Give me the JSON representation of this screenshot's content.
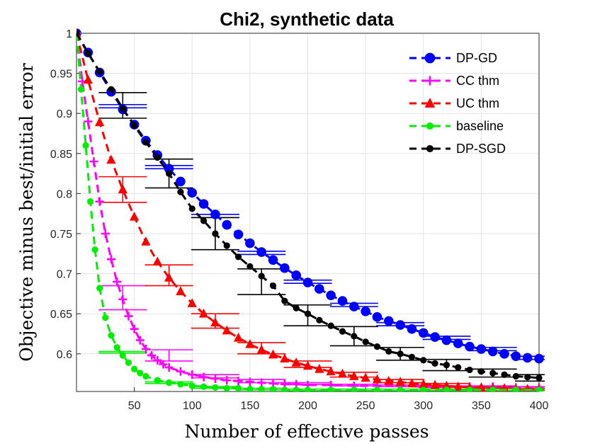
{
  "chart_data": {
    "type": "line",
    "title": "Chi2, synthetic data",
    "xlabel": "Number of effective passes",
    "ylabel": "Objective minus best/initial error",
    "xlim": [
      0,
      400
    ],
    "ylim": [
      0.553,
      1.0
    ],
    "xticks": [
      50,
      100,
      150,
      200,
      250,
      300,
      350,
      400
    ],
    "xtick_labels": [
      "50",
      "100",
      "150",
      "200",
      "250",
      "300",
      "350",
      "400"
    ],
    "yticks": [
      0.6,
      0.65,
      0.7,
      0.75,
      0.8,
      0.85,
      0.9,
      0.95,
      1.0
    ],
    "ytick_labels": [
      "0.6",
      "0.65",
      "0.7",
      "0.75",
      "0.8",
      "0.85",
      "0.9",
      "0.95",
      "1"
    ],
    "grid": true,
    "legend_position": "top-right",
    "series": [
      {
        "name": "DP-GD",
        "color": "#0000ff",
        "marker": "circle",
        "x": [
          0,
          10,
          20,
          30,
          40,
          50,
          60,
          70,
          80,
          90,
          100,
          110,
          120,
          130,
          140,
          150,
          160,
          170,
          180,
          190,
          200,
          210,
          220,
          230,
          240,
          250,
          260,
          270,
          280,
          290,
          300,
          310,
          320,
          330,
          340,
          350,
          360,
          370,
          380,
          390,
          400
        ],
        "y": [
          1.0,
          0.976,
          0.951,
          0.927,
          0.905,
          0.886,
          0.866,
          0.848,
          0.831,
          0.815,
          0.801,
          0.787,
          0.774,
          0.761,
          0.749,
          0.738,
          0.727,
          0.717,
          0.707,
          0.698,
          0.689,
          0.681,
          0.673,
          0.666,
          0.659,
          0.653,
          0.646,
          0.641,
          0.636,
          0.631,
          0.626,
          0.621,
          0.617,
          0.613,
          0.609,
          0.606,
          0.603,
          0.6,
          0.597,
          0.595,
          0.594
        ],
        "errorbars": [
          {
            "x": 40,
            "y": 0.909,
            "err": 0.002
          },
          {
            "x": 80,
            "y": 0.833,
            "err": 0.002
          },
          {
            "x": 120,
            "y": 0.772,
            "err": 0.002
          },
          {
            "x": 160,
            "y": 0.726,
            "err": 0.002
          },
          {
            "x": 200,
            "y": 0.69,
            "err": 0.002
          },
          {
            "x": 240,
            "y": 0.661,
            "err": 0.002
          },
          {
            "x": 280,
            "y": 0.637,
            "err": 0.002
          },
          {
            "x": 320,
            "y": 0.62,
            "err": 0.002
          },
          {
            "x": 360,
            "y": 0.606,
            "err": 0.002
          },
          {
            "x": 400,
            "y": 0.595,
            "err": 0.002
          }
        ]
      },
      {
        "name": "CC thm",
        "color": "#ff00ff",
        "marker": "plus",
        "x": [
          0,
          5,
          10,
          15,
          20,
          25,
          30,
          35,
          40,
          45,
          50,
          55,
          60,
          65,
          70,
          75,
          80,
          90,
          100,
          110,
          120,
          130,
          140,
          150,
          160,
          170,
          180,
          190,
          200,
          220,
          240,
          260,
          280,
          300,
          320,
          340,
          360,
          380,
          400
        ],
        "y": [
          1.0,
          0.94,
          0.89,
          0.84,
          0.79,
          0.75,
          0.718,
          0.69,
          0.668,
          0.647,
          0.631,
          0.617,
          0.606,
          0.598,
          0.592,
          0.587,
          0.583,
          0.578,
          0.574,
          0.571,
          0.569,
          0.567,
          0.566,
          0.565,
          0.564,
          0.563,
          0.562,
          0.562,
          0.561,
          0.561,
          0.56,
          0.56,
          0.56,
          0.559,
          0.559,
          0.559,
          0.559,
          0.558,
          0.558
        ],
        "errorbars": [
          {
            "x": 40,
            "y": 0.67,
            "err": 0.015
          },
          {
            "x": 80,
            "y": 0.598,
            "err": 0.007
          },
          {
            "x": 120,
            "y": 0.572,
            "err": 0.002
          },
          {
            "x": 160,
            "y": 0.566,
            "err": 0.002
          },
          {
            "x": 200,
            "y": 0.563,
            "err": 0.001
          },
          {
            "x": 240,
            "y": 0.561,
            "err": 0.001
          },
          {
            "x": 280,
            "y": 0.56,
            "err": 0.001
          },
          {
            "x": 320,
            "y": 0.559,
            "err": 0.001
          },
          {
            "x": 360,
            "y": 0.559,
            "err": 0.001
          },
          {
            "x": 400,
            "y": 0.558,
            "err": 0.001
          }
        ]
      },
      {
        "name": "UC thm",
        "color": "#ff0000",
        "marker": "triangle",
        "x": [
          0,
          10,
          20,
          30,
          40,
          50,
          60,
          70,
          80,
          90,
          100,
          110,
          120,
          130,
          140,
          150,
          160,
          170,
          180,
          190,
          200,
          210,
          220,
          230,
          240,
          250,
          260,
          270,
          280,
          290,
          300,
          310,
          320,
          330,
          340,
          350,
          360,
          370,
          380,
          390,
          400
        ],
        "y": [
          1.0,
          0.942,
          0.889,
          0.842,
          0.805,
          0.771,
          0.74,
          0.715,
          0.695,
          0.678,
          0.663,
          0.65,
          0.639,
          0.629,
          0.62,
          0.612,
          0.605,
          0.599,
          0.594,
          0.589,
          0.585,
          0.581,
          0.578,
          0.575,
          0.572,
          0.57,
          0.568,
          0.566,
          0.565,
          0.563,
          0.562,
          0.561,
          0.56,
          0.559,
          0.558,
          0.558,
          0.557,
          0.557,
          0.556,
          0.556,
          0.556
        ],
        "errorbars": [
          {
            "x": 40,
            "y": 0.805,
            "err": 0.016
          },
          {
            "x": 80,
            "y": 0.698,
            "err": 0.013
          },
          {
            "x": 120,
            "y": 0.641,
            "err": 0.009
          },
          {
            "x": 160,
            "y": 0.607,
            "err": 0.007
          },
          {
            "x": 200,
            "y": 0.587,
            "err": 0.004
          },
          {
            "x": 240,
            "y": 0.574,
            "err": 0.003
          },
          {
            "x": 280,
            "y": 0.566,
            "err": 0.002
          },
          {
            "x": 320,
            "y": 0.561,
            "err": 0.002
          },
          {
            "x": 360,
            "y": 0.558,
            "err": 0.001
          },
          {
            "x": 400,
            "y": 0.556,
            "err": 0.001
          }
        ]
      },
      {
        "name": "baseline",
        "color": "#00ee00",
        "marker": "dot",
        "x": [
          0,
          4,
          8,
          12,
          16,
          20,
          25,
          30,
          35,
          40,
          45,
          50,
          55,
          60,
          70,
          80,
          90,
          100,
          110,
          120,
          130,
          140,
          150,
          160,
          170,
          180,
          190,
          200,
          220,
          240,
          260,
          280,
          300,
          320,
          340,
          360,
          380,
          400
        ],
        "y": [
          1.0,
          0.93,
          0.86,
          0.79,
          0.73,
          0.682,
          0.645,
          0.623,
          0.608,
          0.598,
          0.589,
          0.581,
          0.576,
          0.572,
          0.567,
          0.564,
          0.562,
          0.56,
          0.559,
          0.558,
          0.557,
          0.557,
          0.556,
          0.556,
          0.556,
          0.555,
          0.555,
          0.555,
          0.555,
          0.555,
          0.555,
          0.555,
          0.555,
          0.555,
          0.555,
          0.555,
          0.555,
          0.555
        ],
        "errorbars": [
          {
            "x": 40,
            "y": 0.602,
            "err": 0.001
          },
          {
            "x": 80,
            "y": 0.564,
            "err": 0.001
          },
          {
            "x": 120,
            "y": 0.558,
            "err": 0.001
          },
          {
            "x": 160,
            "y": 0.556,
            "err": 0.001
          },
          {
            "x": 200,
            "y": 0.555,
            "err": 0.001
          },
          {
            "x": 240,
            "y": 0.555,
            "err": 0.001
          },
          {
            "x": 280,
            "y": 0.555,
            "err": 0.001
          },
          {
            "x": 320,
            "y": 0.555,
            "err": 0.001
          },
          {
            "x": 360,
            "y": 0.555,
            "err": 0.001
          },
          {
            "x": 400,
            "y": 0.555,
            "err": 0.001
          }
        ]
      },
      {
        "name": "DP-SGD",
        "color": "#000000",
        "marker": "dot",
        "x": [
          0,
          10,
          20,
          30,
          40,
          50,
          60,
          70,
          80,
          90,
          100,
          110,
          120,
          130,
          140,
          150,
          160,
          170,
          180,
          190,
          200,
          210,
          220,
          230,
          240,
          250,
          260,
          270,
          280,
          290,
          300,
          310,
          320,
          330,
          340,
          350,
          360,
          370,
          380,
          390,
          400
        ],
        "y": [
          1.0,
          0.975,
          0.952,
          0.93,
          0.906,
          0.885,
          0.864,
          0.845,
          0.825,
          0.802,
          0.781,
          0.766,
          0.75,
          0.735,
          0.721,
          0.709,
          0.697,
          0.685,
          0.666,
          0.657,
          0.65,
          0.642,
          0.635,
          0.628,
          0.622,
          0.615,
          0.609,
          0.603,
          0.6,
          0.596,
          0.592,
          0.588,
          0.586,
          0.583,
          0.58,
          0.578,
          0.576,
          0.574,
          0.572,
          0.571,
          0.57
        ],
        "errorbars": [
          {
            "x": 40,
            "y": 0.91,
            "err": 0.016
          },
          {
            "x": 80,
            "y": 0.825,
            "err": 0.018
          },
          {
            "x": 120,
            "y": 0.75,
            "err": 0.02
          },
          {
            "x": 160,
            "y": 0.69,
            "err": 0.016
          },
          {
            "x": 200,
            "y": 0.648,
            "err": 0.013
          },
          {
            "x": 240,
            "y": 0.622,
            "err": 0.012
          },
          {
            "x": 280,
            "y": 0.6,
            "err": 0.008
          },
          {
            "x": 320,
            "y": 0.586,
            "err": 0.007
          },
          {
            "x": 360,
            "y": 0.576,
            "err": 0.005
          },
          {
            "x": 400,
            "y": 0.57,
            "err": 0.004
          }
        ]
      }
    ]
  }
}
